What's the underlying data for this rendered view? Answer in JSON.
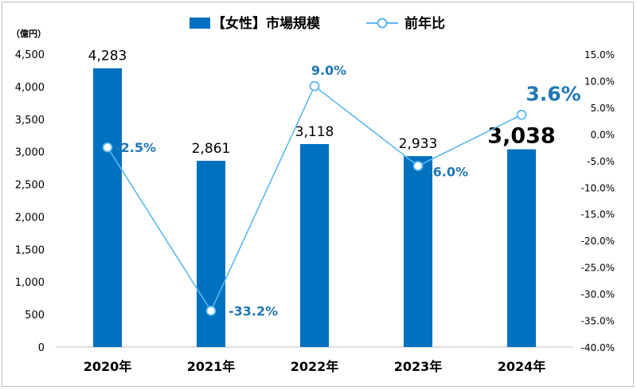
{
  "chart_data": {
    "type": "bar+line",
    "categories": [
      "2020年",
      "2021年",
      "2022年",
      "2023年",
      "2024年"
    ],
    "series": [
      {
        "name": "【女性】市場規模",
        "type": "bar",
        "axis": "left",
        "values": [
          4283,
          2861,
          3118,
          2933,
          3038
        ],
        "labels": [
          "4,283",
          "2,861",
          "3,118",
          "2,933",
          "3,038"
        ]
      },
      {
        "name": "前年比",
        "type": "line",
        "axis": "right",
        "values": [
          -2.5,
          -33.2,
          9.0,
          -6.0,
          3.6
        ],
        "labels": [
          "-2.5%",
          "-33.2%",
          "9.0%",
          "-6.0%",
          "3.6%"
        ]
      }
    ],
    "y_left": {
      "unit": "（億円）",
      "range": [
        0,
        4500
      ],
      "ticks": [
        "0",
        "500",
        "1,000",
        "1,500",
        "2,000",
        "2,500",
        "3,000",
        "3,500",
        "4,000",
        "4,500"
      ]
    },
    "y_right": {
      "range": [
        -40,
        15
      ],
      "ticks": [
        "-40.0%",
        "-35.0%",
        "-30.0%",
        "-25.0%",
        "-20.0%",
        "-15.0%",
        "-10.0%",
        "-5.0%",
        "0.0%",
        "5.0%",
        "10.0%",
        "15.0%"
      ]
    },
    "grid": false,
    "legend": "top-center",
    "colors": {
      "bar": "#0070c0",
      "line": "#5bb8ee",
      "line_label": "#1f77b4",
      "text": "#000000",
      "axis": "#bfbfbf"
    }
  }
}
